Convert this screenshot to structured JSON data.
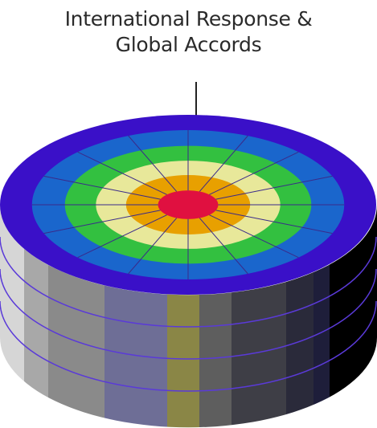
{
  "title": {
    "line1": "International Response &",
    "line2": "Global Accords"
  },
  "colors": {
    "rings": [
      "#3a10c8",
      "#1a66cc",
      "#33c040",
      "#e8e89a",
      "#e8a000",
      "#e01040"
    ],
    "side_bands": [
      "#d6d6d6",
      "#a8a8a8",
      "#8a8a8a",
      "#6e6e96",
      "#8a8646",
      "#5e5e5e",
      "#3e3e46",
      "#2a2a3a",
      "#1e1e3a",
      "#000000"
    ],
    "spokes": "#3a2a8a",
    "side_lines": "#5a3ad8"
  }
}
